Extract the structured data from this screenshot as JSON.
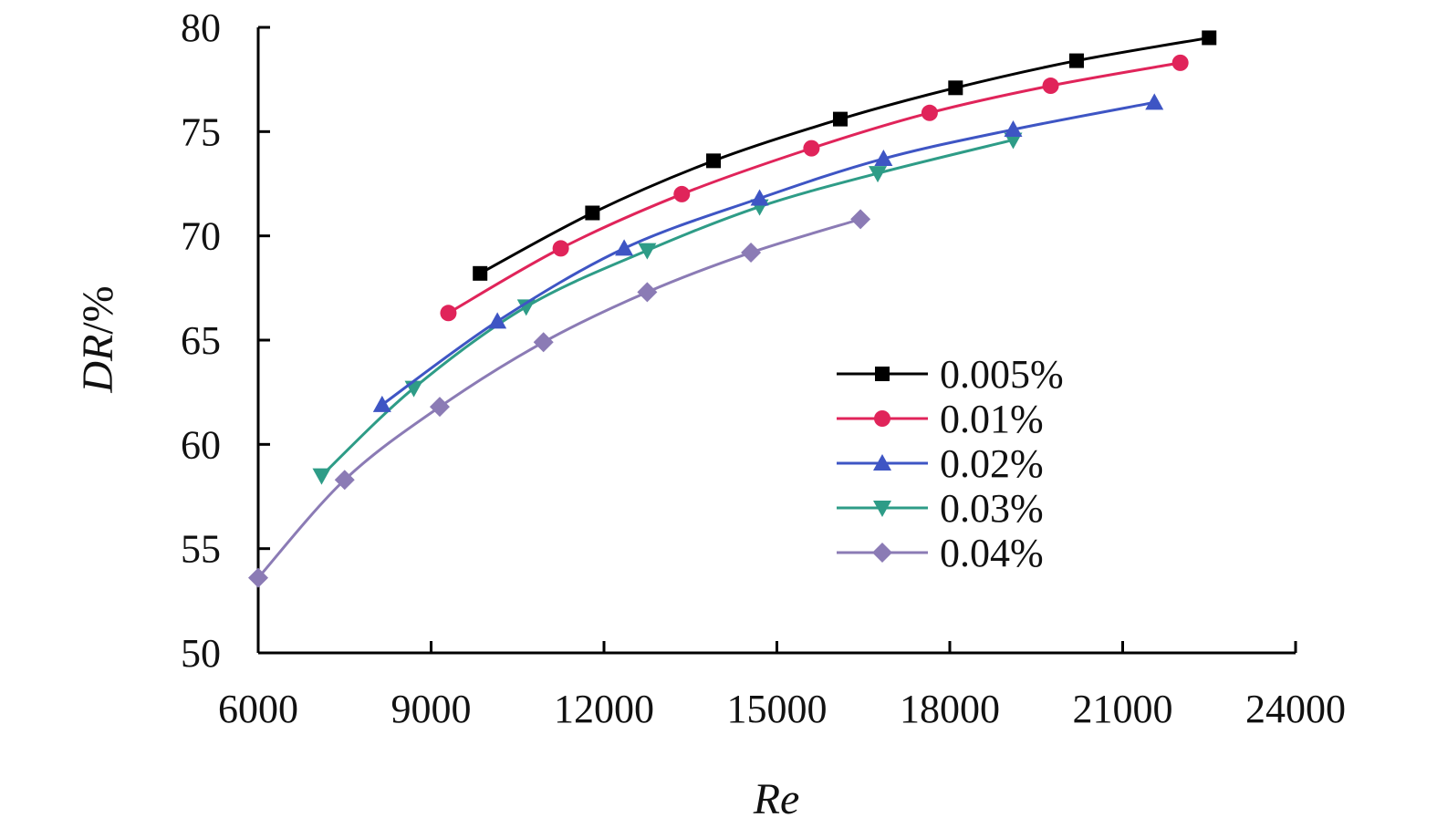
{
  "chart_data": {
    "type": "line",
    "title": "",
    "xlabel": "Re",
    "ylabel": {
      "var": "DR",
      "unit": "/%"
    },
    "xlim": [
      6000,
      24000
    ],
    "ylim": [
      50,
      80
    ],
    "xticks": [
      6000,
      9000,
      12000,
      15000,
      18000,
      21000,
      24000
    ],
    "yticks": [
      50,
      55,
      60,
      65,
      70,
      75,
      80
    ],
    "grid": false,
    "legend_position": "right",
    "series": [
      {
        "name": "0.005%",
        "color": "#000000",
        "marker": "square",
        "x": [
          9850,
          11800,
          13900,
          16100,
          18100,
          20200,
          22500
        ],
        "y": [
          68.2,
          71.1,
          73.6,
          75.6,
          77.1,
          78.4,
          79.5
        ]
      },
      {
        "name": "0.01%",
        "color": "#e0245a",
        "marker": "circle",
        "x": [
          9300,
          11250,
          13350,
          15600,
          17650,
          19750,
          22000
        ],
        "y": [
          66.3,
          69.4,
          72.0,
          74.2,
          75.9,
          77.2,
          78.3
        ]
      },
      {
        "name": "0.02%",
        "color": "#3e55c4",
        "marker": "triangle-up",
        "x": [
          8150,
          10150,
          12350,
          14700,
          16850,
          19100,
          21550
        ],
        "y": [
          61.9,
          65.9,
          69.4,
          71.8,
          73.7,
          75.1,
          76.4
        ]
      },
      {
        "name": "0.03%",
        "color": "#2e9c87",
        "marker": "triangle-down",
        "x": [
          7100,
          8700,
          10650,
          12750,
          14700,
          16750,
          19100
        ],
        "y": [
          58.5,
          62.7,
          66.6,
          69.3,
          71.4,
          73.0,
          74.6
        ]
      },
      {
        "name": "0.04%",
        "color": "#8b7bb5",
        "marker": "diamond",
        "x": [
          6000,
          7500,
          9150,
          10950,
          12750,
          14550,
          16450
        ],
        "y": [
          53.6,
          58.3,
          61.8,
          64.9,
          67.3,
          69.2,
          70.8
        ]
      }
    ]
  }
}
